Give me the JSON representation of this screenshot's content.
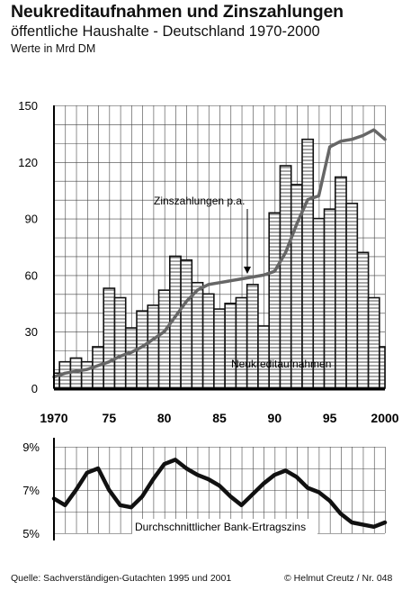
{
  "header": {
    "title": "Neukreditaufnahmen und Zinszahlungen",
    "subtitle": "öffentliche Haushalte -  Deutschland 1970-2000",
    "unit_note": "Werte in Mrd DM"
  },
  "footer": {
    "source": "Quelle:  Sachverständigen-Gutachten 1995 und 2001",
    "credit": "© Helmut  Creutz /  Nr. 048"
  },
  "chart_data": [
    {
      "type": "bar",
      "y_ticks": [
        "150",
        "120",
        "90",
        "60",
        "30",
        "0"
      ],
      "x_ticks": [
        "1970",
        "75",
        "80",
        "85",
        "90",
        "95",
        "2000"
      ],
      "ylim": [
        0,
        150
      ],
      "xlim": [
        1970,
        2000
      ],
      "grid": true,
      "series": [
        {
          "name": "Neukreditaufnahmen",
          "type": "bar",
          "x": [
            1970,
            1971,
            1972,
            1973,
            1974,
            1975,
            1976,
            1977,
            1978,
            1979,
            1980,
            1981,
            1982,
            1983,
            1984,
            1985,
            1986,
            1987,
            1988,
            1989,
            1990,
            1991,
            1992,
            1993,
            1994,
            1995,
            1996,
            1997,
            1998,
            1999,
            2000
          ],
          "values": [
            8,
            14,
            16,
            14,
            22,
            53,
            48,
            32,
            41,
            44,
            52,
            70,
            68,
            56,
            50,
            42,
            45,
            48,
            55,
            33,
            93,
            118,
            108,
            132,
            90,
            95,
            112,
            98,
            72,
            48,
            22
          ]
        },
        {
          "name": "Zinszahlungen p.a.",
          "type": "line",
          "x": [
            1970,
            1971,
            1972,
            1973,
            1974,
            1975,
            1976,
            1977,
            1978,
            1979,
            1980,
            1981,
            1982,
            1983,
            1984,
            1985,
            1986,
            1987,
            1988,
            1989,
            1990,
            1991,
            1992,
            1993,
            1994,
            1995,
            1996,
            1997,
            1998,
            1999,
            2000
          ],
          "values": [
            6,
            8,
            9,
            10,
            12,
            14,
            17,
            19,
            22,
            26,
            30,
            38,
            46,
            52,
            55,
            56,
            57,
            58,
            59,
            60,
            62,
            72,
            87,
            100,
            102,
            128,
            131,
            132,
            134,
            137,
            132
          ]
        }
      ]
    },
    {
      "type": "line",
      "y_ticks": [
        "9%",
        "7%",
        "5%"
      ],
      "ylim": [
        5,
        9
      ],
      "xlim": [
        1970,
        2000
      ],
      "grid": true,
      "series": [
        {
          "name": "Durchschnittlicher Bank-Ertragszins",
          "x": [
            1970,
            1971,
            1972,
            1973,
            1974,
            1975,
            1976,
            1977,
            1978,
            1979,
            1980,
            1981,
            1982,
            1983,
            1984,
            1985,
            1986,
            1987,
            1988,
            1989,
            1990,
            1991,
            1992,
            1993,
            1994,
            1995,
            1996,
            1997,
            1998,
            1999,
            2000
          ],
          "values": [
            6.6,
            6.3,
            7.0,
            7.8,
            8.0,
            7.0,
            6.3,
            6.2,
            6.7,
            7.5,
            8.2,
            8.4,
            8.0,
            7.7,
            7.5,
            7.2,
            6.7,
            6.3,
            6.8,
            7.3,
            7.7,
            7.9,
            7.6,
            7.1,
            6.9,
            6.5,
            5.9,
            5.5,
            5.4,
            5.3,
            5.5
          ]
        }
      ]
    }
  ]
}
